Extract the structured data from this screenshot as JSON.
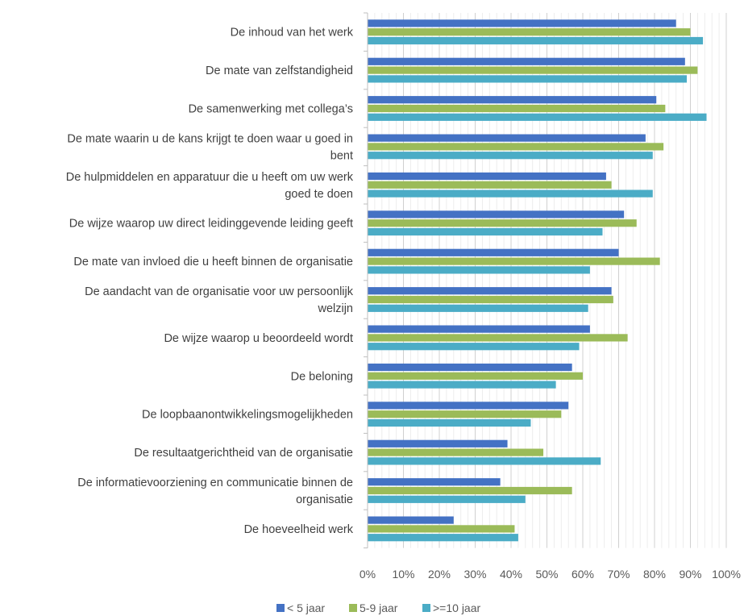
{
  "chart_data": {
    "type": "bar",
    "orientation": "horizontal",
    "categories": [
      [
        "De inhoud van het werk"
      ],
      [
        "De mate van zelfstandigheid"
      ],
      [
        "De samenwerking met collega’s"
      ],
      [
        "De mate waarin u de kans krijgt te doen waar u goed in",
        "bent"
      ],
      [
        "De hulpmiddelen en apparatuur die u heeft om uw werk",
        "goed te doen"
      ],
      [
        "De wijze waarop uw direct leidinggevende leiding geeft"
      ],
      [
        "De mate van invloed die u heeft binnen de organisatie"
      ],
      [
        "De aandacht van de organisatie voor uw persoonlijk",
        "welzijn"
      ],
      [
        "De wijze waarop u beoordeeld wordt"
      ],
      [
        "De beloning"
      ],
      [
        "De loopbaanontwikkelingsmogelijkheden"
      ],
      [
        "De resultaatgerichtheid van de organisatie"
      ],
      [
        "De informatievoorziening en communicatie binnen de",
        "organisatie"
      ],
      [
        "De hoeveelheid werk"
      ]
    ],
    "series": [
      {
        "name": "< 5 jaar",
        "color": "#4472C4",
        "values": [
          86,
          88.5,
          80.5,
          77.5,
          66.5,
          71.5,
          70,
          68,
          62,
          57,
          56,
          39,
          37,
          24
        ]
      },
      {
        "name": "5-9 jaar",
        "color": "#9BBB59",
        "values": [
          90,
          92,
          83,
          82.5,
          68,
          75,
          81.5,
          68.5,
          72.5,
          60,
          54,
          49,
          57,
          41
        ]
      },
      {
        "name": ">=10 jaar",
        "color": "#4BACC6",
        "values": [
          93.5,
          89,
          94.5,
          79.5,
          79.5,
          65.5,
          62,
          61.5,
          59,
          52.5,
          45.5,
          65,
          44,
          42
        ]
      }
    ],
    "xlim": [
      0,
      100
    ],
    "x_ticks": [
      "0%",
      "10%",
      "20%",
      "30%",
      "40%",
      "50%",
      "60%",
      "70%",
      "80%",
      "90%",
      "100%"
    ],
    "grid": true,
    "legend_position": "bottom"
  }
}
